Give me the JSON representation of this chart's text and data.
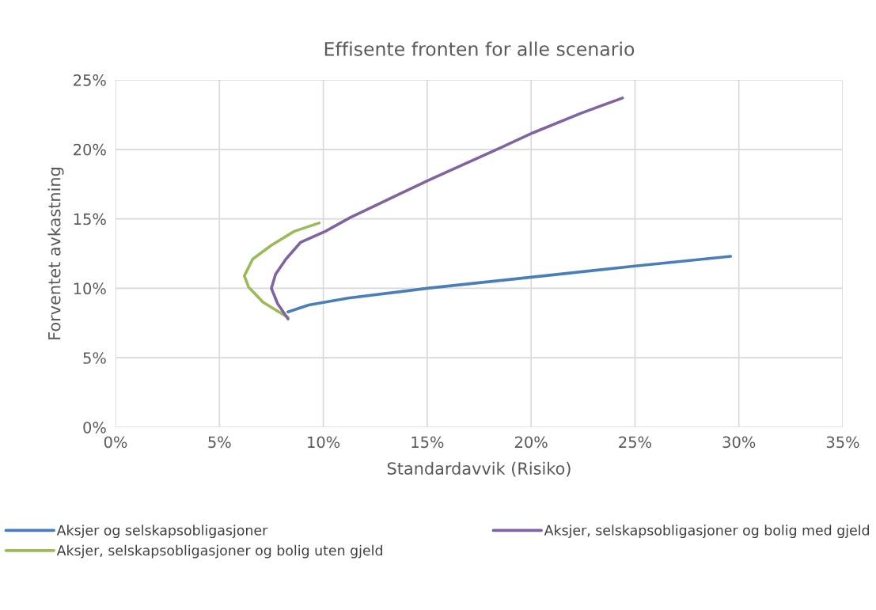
{
  "chart_data": {
    "type": "line",
    "title": "Effisente fronten for alle scenario",
    "xlabel": "Standardavvik (Risiko)",
    "ylabel": "Forventet avkastning",
    "xlim": [
      0,
      35
    ],
    "xticks": [
      {
        "value": 0,
        "label": "0%"
      },
      {
        "value": 5,
        "label": "5%"
      },
      {
        "value": 10,
        "label": "10%"
      },
      {
        "value": 15,
        "label": "15%"
      },
      {
        "value": 20,
        "label": "20%"
      },
      {
        "value": 25,
        "label": "25%"
      },
      {
        "value": 30,
        "label": "30%"
      },
      {
        "value": 35,
        "label": "35%"
      }
    ],
    "ylim": [
      0,
      25
    ],
    "yticks": [
      {
        "value": 0,
        "label": "0%"
      },
      {
        "value": 5,
        "label": "5%"
      },
      {
        "value": 10,
        "label": "10%"
      },
      {
        "value": 15,
        "label": "15%"
      },
      {
        "value": 20,
        "label": "20%"
      },
      {
        "value": 25,
        "label": "25%"
      }
    ],
    "grid": true,
    "legend": "bottom",
    "marker": "none",
    "line_style": "solid",
    "series": [
      {
        "name": "Aksjer og selskapsobligasjoner",
        "color": "#4a7ebb",
        "x": [
          8.3,
          9.3,
          11.2,
          15.0,
          20.0,
          25.0,
          29.6
        ],
        "values": [
          8.3,
          8.8,
          9.3,
          10.0,
          10.8,
          11.6,
          12.3
        ]
      },
      {
        "name": "Aksjer, selskapsobligasjoner og bolig uten gjeld",
        "color": "#9bbb59",
        "x": [
          8.3,
          7.1,
          6.4,
          6.2,
          6.6,
          7.5,
          8.6,
          9.8
        ],
        "values": [
          7.9,
          9.0,
          10.1,
          10.9,
          12.1,
          13.1,
          14.1,
          14.7
        ]
      },
      {
        "name": "Aksjer, selskapsobligasjoner og bolig med gjeld",
        "color": "#8064a2",
        "x": [
          8.3,
          7.8,
          7.5,
          7.7,
          8.2,
          8.9,
          10.1,
          11.3,
          15.1,
          18.5,
          20.1,
          22.4,
          24.4
        ],
        "values": [
          7.8,
          8.9,
          10.0,
          11.0,
          12.1,
          13.3,
          14.1,
          15.1,
          17.8,
          20.1,
          21.2,
          22.6,
          23.7
        ]
      }
    ]
  }
}
